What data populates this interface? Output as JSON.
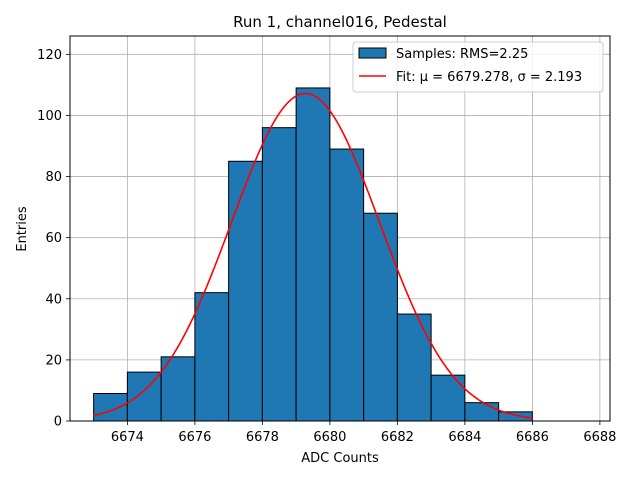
{
  "chart_data": {
    "type": "bar",
    "title": "Run 1, channel016, Pedestal",
    "xlabel": "ADC Counts",
    "ylabel": "Entries",
    "xlim": [
      6672.3,
      6688.3
    ],
    "ylim": [
      0,
      126
    ],
    "xticks": [
      6674,
      6676,
      6678,
      6680,
      6682,
      6684,
      6686,
      6688
    ],
    "yticks": [
      0,
      20,
      40,
      60,
      80,
      100,
      120
    ],
    "grid": true,
    "legend_position": "top-right",
    "histogram": {
      "name": "Samples: RMS=2.25",
      "bin_edges": [
        6673,
        6674,
        6675,
        6676,
        6677,
        6678,
        6679,
        6680,
        6681,
        6682,
        6683,
        6684,
        6685,
        6686
      ],
      "counts": [
        9,
        16,
        21,
        42,
        85,
        96,
        109,
        89,
        68,
        35,
        15,
        6,
        3
      ],
      "color": "#1f77b4",
      "edgecolor": "#000000"
    },
    "fit": {
      "name": "Fit: μ = 6679.278, σ = 2.193",
      "mu": 6679.278,
      "sigma": 2.193,
      "amplitude": 107.2,
      "x_range": [
        6673,
        6686
      ],
      "color": "#ff0000"
    }
  }
}
